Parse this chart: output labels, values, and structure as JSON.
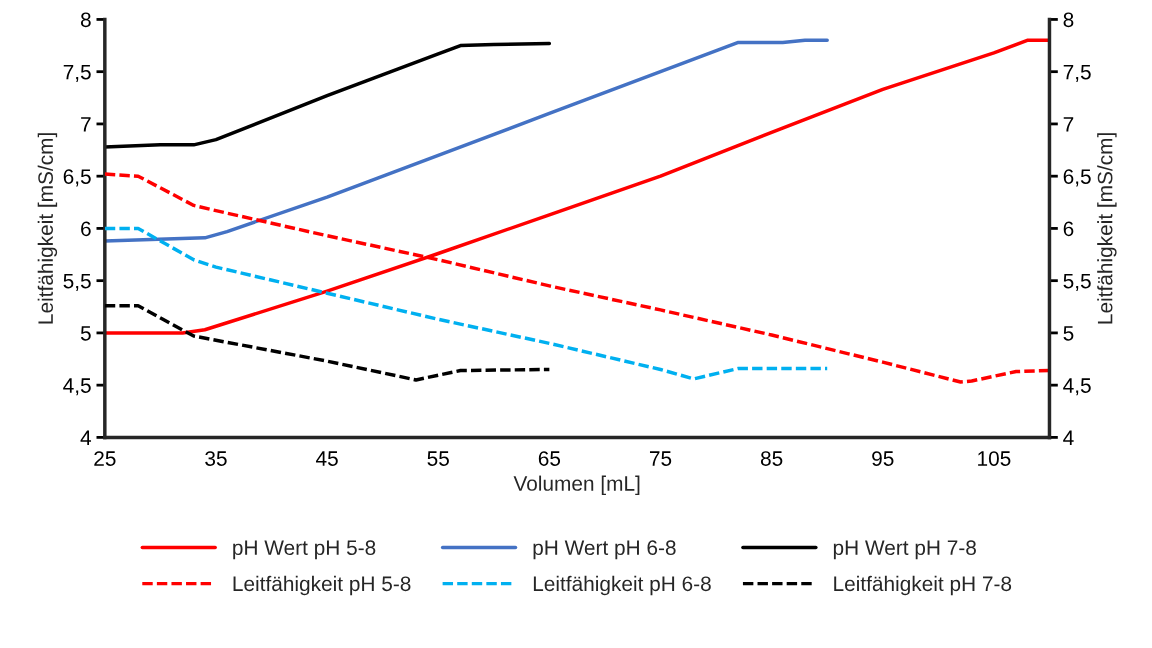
{
  "chart_data": {
    "type": "line",
    "xlabel": "Volumen [mL]",
    "ylabel": "Leitfähigkeit [mS/cm]",
    "y2label": "Leitfähigkeit [mS/cm]",
    "xlim": [
      25,
      110
    ],
    "xticks": [
      25,
      35,
      45,
      55,
      65,
      75,
      85,
      95,
      105
    ],
    "ylim": [
      4,
      8
    ],
    "yticks": [
      4,
      {
        "value": 4.5,
        "label": "4,5"
      },
      5,
      {
        "value": 5.5,
        "label": "5,5"
      },
      6,
      {
        "value": 6.5,
        "label": "6,5"
      },
      7,
      {
        "value": 7.5,
        "label": "7,5"
      },
      8
    ],
    "y2lim": [
      4,
      8
    ],
    "y2ticks": [
      4,
      {
        "value": 4.5,
        "label": "4,5"
      },
      5,
      {
        "value": 5.5,
        "label": "5,5"
      },
      6,
      {
        "value": 6.5,
        "label": "6,5"
      },
      7,
      {
        "value": 7.5,
        "label": "7,5"
      },
      8
    ],
    "grid": false,
    "legend": "bottom",
    "marker": "none",
    "series": [
      {
        "name": "pH Wert pH 5-8",
        "color": "#ff0000",
        "line_style": "solid",
        "x": [
          25,
          32,
          34,
          45,
          55,
          65,
          75,
          85,
          95,
          105,
          108,
          110
        ],
        "values": [
          5.0,
          5.0,
          5.03,
          5.4,
          5.76,
          6.13,
          6.5,
          6.92,
          7.33,
          7.68,
          7.8,
          7.8
        ]
      },
      {
        "name": "pH Wert pH 6-8",
        "color": "#4472c4",
        "line_style": "solid",
        "x": [
          25,
          34,
          36,
          45,
          55,
          65,
          75,
          82,
          86,
          88,
          90
        ],
        "values": [
          5.88,
          5.91,
          5.97,
          6.3,
          6.7,
          7.1,
          7.5,
          7.78,
          7.78,
          7.8,
          7.8
        ]
      },
      {
        "name": "pH Wert pH 7-8",
        "color": "#000000",
        "line_style": "solid",
        "x": [
          25,
          30,
          33,
          35,
          45,
          55,
          57,
          60,
          65
        ],
        "values": [
          6.78,
          6.8,
          6.8,
          6.85,
          7.27,
          7.67,
          7.75,
          7.76,
          7.77
        ]
      },
      {
        "name": "Leitfähigkeit pH 5-8",
        "color": "#ff0000",
        "line_style": "dashed",
        "axis": "y2",
        "x": [
          25,
          28,
          33,
          35,
          45,
          55,
          65,
          75,
          85,
          95,
          102,
          103,
          107,
          110
        ],
        "values": [
          6.52,
          6.5,
          6.22,
          6.17,
          5.93,
          5.7,
          5.45,
          5.22,
          4.98,
          4.72,
          4.53,
          4.54,
          4.63,
          4.64
        ]
      },
      {
        "name": "Leitfähigkeit pH 6-8",
        "color": "#00b0f0",
        "line_style": "dashed",
        "axis": "y2",
        "x": [
          25,
          28,
          33,
          35,
          45,
          55,
          65,
          75,
          78,
          82,
          90
        ],
        "values": [
          6.0,
          6.0,
          5.7,
          5.63,
          5.38,
          5.13,
          4.9,
          4.65,
          4.56,
          4.66,
          4.66
        ]
      },
      {
        "name": "Leitfähigkeit pH 7-8",
        "color": "#000000",
        "line_style": "dashed",
        "axis": "y2",
        "x": [
          25,
          28,
          33,
          35,
          45,
          53,
          57,
          65
        ],
        "values": [
          5.26,
          5.26,
          4.97,
          4.93,
          4.73,
          4.55,
          4.64,
          4.65
        ]
      }
    ]
  }
}
